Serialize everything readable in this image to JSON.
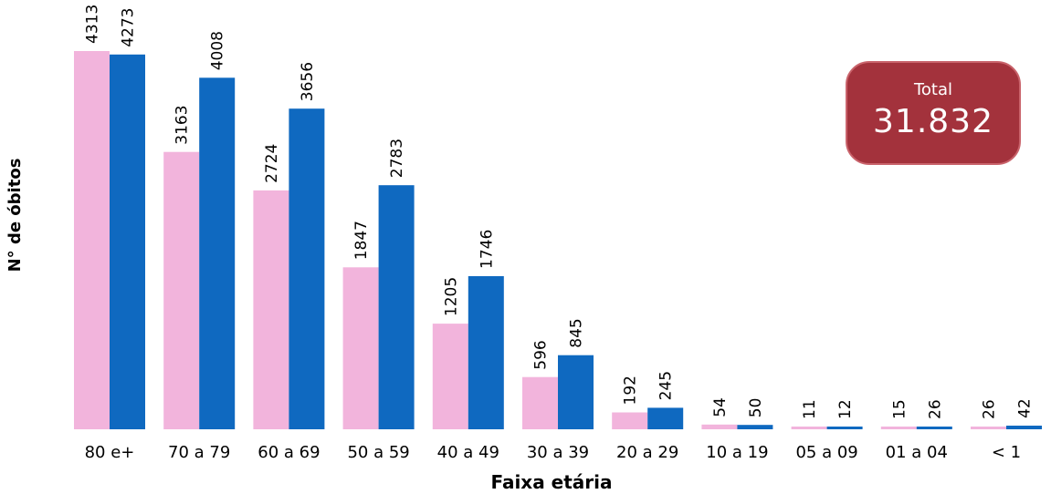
{
  "colors": {
    "series_female": "#f2b4dc",
    "series_male": "#0f69c0",
    "total_box_bg": "#a3323c",
    "total_box_border": "#c9636b"
  },
  "total_box": {
    "label": "Total",
    "value": "31.832"
  },
  "chart_data": {
    "type": "bar",
    "title": "",
    "xlabel": "Faixa etária",
    "ylabel": "N° de óbitos",
    "ylim": [
      0,
      4313
    ],
    "grid": false,
    "legend": "none",
    "categories": [
      "80 e+",
      "70 a 79",
      "60 a 69",
      "50 a 59",
      "40 a 49",
      "30 a 39",
      "20 a 29",
      "10 a 19",
      "05 a 09",
      "01 a 04",
      "< 1"
    ],
    "series": [
      {
        "color": "#f2b4dc",
        "values": [
          4313,
          3163,
          2724,
          1847,
          1205,
          596,
          192,
          54,
          11,
          15,
          26
        ]
      },
      {
        "color": "#0f69c0",
        "values": [
          4273,
          4008,
          3656,
          2783,
          1746,
          845,
          245,
          50,
          12,
          26,
          42
        ]
      }
    ]
  }
}
